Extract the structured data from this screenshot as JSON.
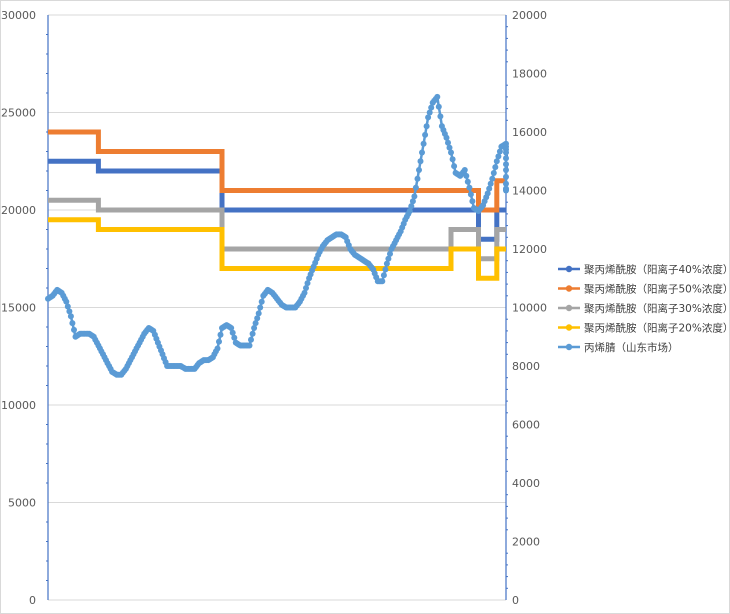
{
  "chart_data": {
    "type": "line",
    "title": "",
    "grid": true,
    "legend_position": "right",
    "y_left": {
      "lim": [
        0,
        30000
      ],
      "ticks": [
        0,
        5000,
        10000,
        15000,
        20000,
        25000,
        30000
      ],
      "tick_labels": [
        "0",
        "5000",
        "10000",
        "15000",
        "20000",
        "25000",
        "30000"
      ]
    },
    "y_right": {
      "lim": [
        0,
        20000
      ],
      "ticks": [
        0,
        2000,
        4000,
        6000,
        8000,
        10000,
        12000,
        14000,
        16000,
        18000,
        20000
      ],
      "tick_labels": [
        "0",
        "2000",
        "4000",
        "6000",
        "8000",
        "10000",
        "12000",
        "14000",
        "16000",
        "18000",
        "20000"
      ]
    },
    "x_range": [
      0,
      100
    ],
    "series": [
      {
        "name": "聚丙烯酰胺（阳离子40%浓度）",
        "axis": "left",
        "color": "#4472C4",
        "step": true,
        "points": [
          [
            0,
            22500
          ],
          [
            11,
            22500
          ],
          [
            11,
            22000
          ],
          [
            38,
            22000
          ],
          [
            38,
            20000
          ],
          [
            88,
            20000
          ],
          [
            88,
            20000
          ],
          [
            94,
            20000
          ],
          [
            94,
            18500
          ],
          [
            98,
            18500
          ],
          [
            98,
            20000
          ],
          [
            100,
            20000
          ]
        ]
      },
      {
        "name": "聚丙烯酰胺（阳离子50%浓度）",
        "axis": "left",
        "color": "#ED7D31",
        "step": true,
        "points": [
          [
            0,
            24000
          ],
          [
            11,
            24000
          ],
          [
            11,
            23000
          ],
          [
            38,
            23000
          ],
          [
            38,
            21000
          ],
          [
            94,
            21000
          ],
          [
            94,
            20000
          ],
          [
            98,
            20000
          ],
          [
            98,
            21500
          ],
          [
            100,
            21500
          ]
        ]
      },
      {
        "name": "聚丙烯酰胺（阳离子30%浓度）",
        "axis": "left",
        "color": "#A5A5A5",
        "step": true,
        "points": [
          [
            0,
            20500
          ],
          [
            11,
            20500
          ],
          [
            11,
            20000
          ],
          [
            38,
            20000
          ],
          [
            38,
            18000
          ],
          [
            88,
            18000
          ],
          [
            88,
            19000
          ],
          [
            94,
            19000
          ],
          [
            94,
            17500
          ],
          [
            98,
            17500
          ],
          [
            98,
            19000
          ],
          [
            100,
            19000
          ]
        ]
      },
      {
        "name": "聚丙烯酰胺（阳离子20%浓度）",
        "axis": "left",
        "color": "#FFC000",
        "step": true,
        "points": [
          [
            0,
            19500
          ],
          [
            11,
            19500
          ],
          [
            11,
            19000
          ],
          [
            38,
            19000
          ],
          [
            38,
            17000
          ],
          [
            88,
            17000
          ],
          [
            88,
            18000
          ],
          [
            94,
            18000
          ],
          [
            94,
            16500
          ],
          [
            98,
            16500
          ],
          [
            98,
            18000
          ],
          [
            100,
            18000
          ]
        ]
      },
      {
        "name": "丙烯腈（山东市场）",
        "axis": "right",
        "color": "#5B9BD5",
        "step": false,
        "points": [
          [
            0,
            10300
          ],
          [
            1,
            10400
          ],
          [
            2,
            10600
          ],
          [
            3,
            10500
          ],
          [
            4,
            10200
          ],
          [
            5,
            9700
          ],
          [
            6,
            9000
          ],
          [
            7,
            9100
          ],
          [
            8,
            9100
          ],
          [
            9,
            9100
          ],
          [
            10,
            9000
          ],
          [
            11,
            8700
          ],
          [
            12,
            8400
          ],
          [
            13,
            8100
          ],
          [
            14,
            7800
          ],
          [
            15,
            7700
          ],
          [
            16,
            7700
          ],
          [
            17,
            7900
          ],
          [
            18,
            8200
          ],
          [
            19,
            8500
          ],
          [
            20,
            8800
          ],
          [
            21,
            9100
          ],
          [
            22,
            9300
          ],
          [
            23,
            9200
          ],
          [
            24,
            8800
          ],
          [
            25,
            8400
          ],
          [
            26,
            8000
          ],
          [
            27,
            8000
          ],
          [
            28,
            8000
          ],
          [
            29,
            8000
          ],
          [
            30,
            7900
          ],
          [
            31,
            7900
          ],
          [
            32,
            7900
          ],
          [
            33,
            8100
          ],
          [
            34,
            8200
          ],
          [
            35,
            8200
          ],
          [
            36,
            8300
          ],
          [
            37,
            8600
          ],
          [
            38,
            9300
          ],
          [
            39,
            9400
          ],
          [
            40,
            9300
          ],
          [
            41,
            8800
          ],
          [
            42,
            8700
          ],
          [
            43,
            8700
          ],
          [
            44,
            8700
          ],
          [
            45,
            9300
          ],
          [
            46,
            9800
          ],
          [
            47,
            10400
          ],
          [
            48,
            10600
          ],
          [
            49,
            10500
          ],
          [
            50,
            10300
          ],
          [
            51,
            10100
          ],
          [
            52,
            10000
          ],
          [
            53,
            10000
          ],
          [
            54,
            10000
          ],
          [
            55,
            10200
          ],
          [
            56,
            10500
          ],
          [
            57,
            11000
          ],
          [
            58,
            11400
          ],
          [
            59,
            11800
          ],
          [
            60,
            12100
          ],
          [
            61,
            12300
          ],
          [
            62,
            12400
          ],
          [
            63,
            12500
          ],
          [
            64,
            12500
          ],
          [
            65,
            12400
          ],
          [
            66,
            12000
          ],
          [
            67,
            11800
          ],
          [
            68,
            11700
          ],
          [
            69,
            11600
          ],
          [
            70,
            11500
          ],
          [
            71,
            11300
          ],
          [
            72,
            10900
          ],
          [
            73,
            10900
          ],
          [
            74,
            11500
          ],
          [
            75,
            12000
          ],
          [
            76,
            12300
          ],
          [
            77,
            12600
          ],
          [
            78,
            13000
          ],
          [
            79,
            13300
          ],
          [
            80,
            13800
          ],
          [
            81,
            14700
          ],
          [
            82,
            15600
          ],
          [
            83,
            16500
          ],
          [
            84,
            17000
          ],
          [
            85,
            17200
          ],
          [
            86,
            16200
          ],
          [
            87,
            15800
          ],
          [
            88,
            15300
          ],
          [
            89,
            14600
          ],
          [
            90,
            14500
          ],
          [
            91,
            14700
          ],
          [
            92,
            14100
          ],
          [
            93,
            13400
          ],
          [
            94,
            13300
          ],
          [
            95,
            13500
          ],
          [
            96,
            13900
          ],
          [
            97,
            14400
          ],
          [
            98,
            15000
          ],
          [
            99,
            15500
          ],
          [
            100,
            15600
          ],
          [
            101,
            15300
          ],
          [
            102,
            14700
          ],
          [
            103,
            14000
          ],
          [
            104,
            14100
          ]
        ]
      }
    ]
  }
}
